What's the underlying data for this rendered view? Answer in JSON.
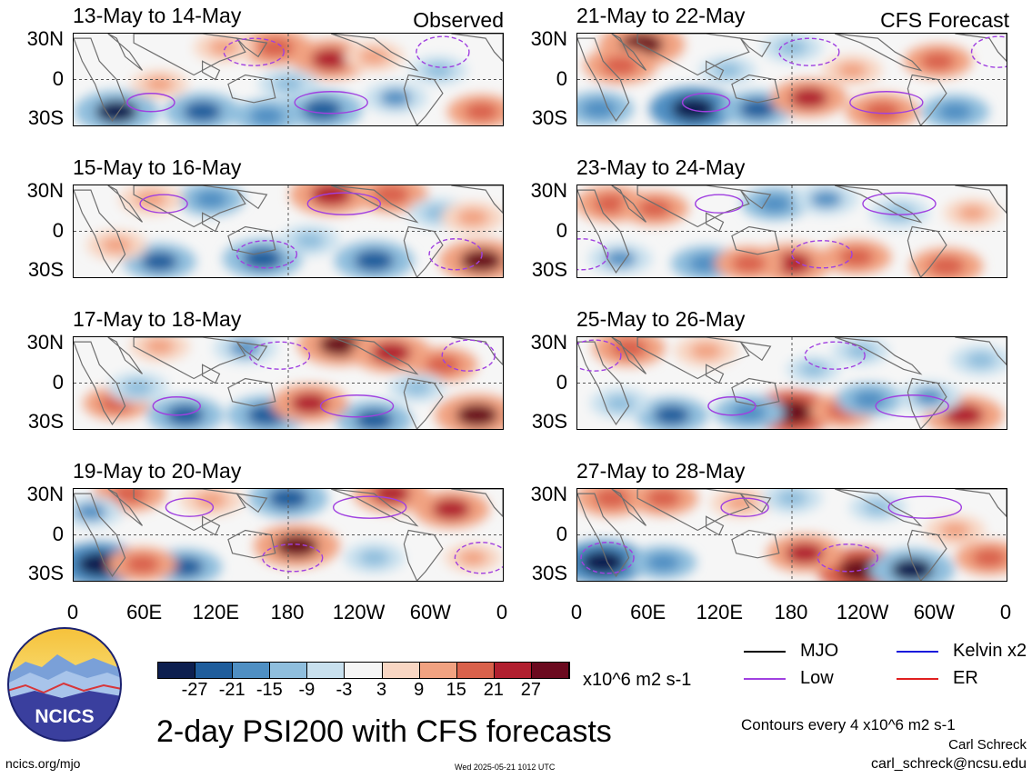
{
  "left_column_title": "Observed",
  "right_column_title": "CFS Forecast",
  "chart_data": [
    {
      "type": "heatmap",
      "title": "13-May to 14-May",
      "group": "Observed",
      "x": [
        "0",
        "60E",
        "120E",
        "180",
        "120W",
        "60W",
        "0"
      ],
      "y": [
        "30N",
        "0",
        "30S"
      ],
      "blobs": [
        [
          0.1,
          0.85,
          -25
        ],
        [
          0.3,
          0.85,
          -20
        ],
        [
          0.45,
          0.9,
          -15
        ],
        [
          0.58,
          0.83,
          -22
        ],
        [
          0.6,
          0.28,
          22
        ],
        [
          0.47,
          0.15,
          18
        ],
        [
          0.5,
          0.55,
          -10
        ],
        [
          0.95,
          0.85,
          15
        ],
        [
          0.2,
          0.55,
          8
        ],
        [
          0.75,
          0.7,
          -12
        ],
        [
          0.35,
          0.15,
          10
        ],
        [
          0.85,
          0.4,
          -8
        ],
        [
          0.7,
          0.25,
          10
        ]
      ]
    },
    {
      "type": "heatmap",
      "title": "15-May to 16-May",
      "group": "Observed",
      "x": [
        "0",
        "60E",
        "120E",
        "180",
        "120W",
        "60W",
        "0"
      ],
      "y": [
        "30N",
        "0",
        "30S"
      ],
      "blobs": [
        [
          0.2,
          0.83,
          -18
        ],
        [
          0.44,
          0.8,
          -22
        ],
        [
          0.7,
          0.82,
          -22
        ],
        [
          0.95,
          0.82,
          25
        ],
        [
          0.6,
          0.1,
          24
        ],
        [
          0.74,
          0.1,
          18
        ],
        [
          0.32,
          0.15,
          -14
        ],
        [
          0.18,
          0.15,
          12
        ],
        [
          0.1,
          0.65,
          10
        ],
        [
          0.55,
          0.6,
          -10
        ],
        [
          0.85,
          0.3,
          -10
        ],
        [
          0.93,
          0.35,
          12
        ]
      ]
    },
    {
      "type": "heatmap",
      "title": "17-May to 18-May",
      "group": "Observed",
      "x": [
        "0",
        "60E",
        "120E",
        "180",
        "120W",
        "60W",
        "0"
      ],
      "y": [
        "30N",
        "0",
        "30S"
      ],
      "blobs": [
        [
          0.26,
          0.85,
          -20
        ],
        [
          0.45,
          0.85,
          -22
        ],
        [
          0.7,
          0.9,
          -20
        ],
        [
          0.55,
          0.72,
          20
        ],
        [
          0.94,
          0.85,
          25
        ],
        [
          0.62,
          0.08,
          25
        ],
        [
          0.74,
          0.17,
          22
        ],
        [
          0.86,
          0.3,
          16
        ],
        [
          0.1,
          0.72,
          14
        ],
        [
          0.4,
          0.12,
          -12
        ],
        [
          0.2,
          0.1,
          10
        ],
        [
          0.15,
          0.55,
          -10
        ],
        [
          0.8,
          0.55,
          -8
        ]
      ]
    },
    {
      "type": "heatmap",
      "title": "19-May to 20-May",
      "group": "Observed",
      "x": [
        "0",
        "60E",
        "120E",
        "180",
        "120W",
        "60W",
        "0"
      ],
      "y": [
        "30N",
        "0",
        "30S"
      ],
      "blobs": [
        [
          0.06,
          0.82,
          -27
        ],
        [
          0.26,
          0.85,
          -18
        ],
        [
          0.16,
          0.82,
          15
        ],
        [
          0.52,
          0.62,
          26
        ],
        [
          0.5,
          0.1,
          -22
        ],
        [
          0.74,
          0.05,
          20
        ],
        [
          0.88,
          0.22,
          20
        ],
        [
          0.13,
          0.05,
          18
        ],
        [
          0.32,
          0.12,
          12
        ],
        [
          0.04,
          0.25,
          -12
        ],
        [
          0.7,
          0.75,
          -10
        ],
        [
          0.93,
          0.75,
          8
        ]
      ]
    },
    {
      "type": "heatmap",
      "title": "21-May to 22-May",
      "group": "CFS Forecast",
      "x": [
        "0",
        "60E",
        "120E",
        "180",
        "120W",
        "60W",
        "0"
      ],
      "y": [
        "30N",
        "0",
        "30S"
      ],
      "blobs": [
        [
          0.15,
          0.12,
          26
        ],
        [
          0.1,
          0.35,
          18
        ],
        [
          0.05,
          0.82,
          -16
        ],
        [
          0.27,
          0.82,
          -27
        ],
        [
          0.42,
          0.82,
          -18
        ],
        [
          0.54,
          0.7,
          20
        ],
        [
          0.71,
          0.85,
          18
        ],
        [
          0.88,
          0.85,
          -15
        ],
        [
          0.84,
          0.3,
          15
        ],
        [
          0.5,
          0.15,
          -10
        ],
        [
          0.35,
          0.4,
          -8
        ],
        [
          0.64,
          0.4,
          10
        ]
      ]
    },
    {
      "type": "heatmap",
      "title": "23-May to 24-May",
      "group": "CFS Forecast",
      "x": [
        "0",
        "60E",
        "120E",
        "180",
        "120W",
        "60W",
        "0"
      ],
      "y": [
        "30N",
        "0",
        "30S"
      ],
      "blobs": [
        [
          0.08,
          0.2,
          18
        ],
        [
          0.18,
          0.25,
          15
        ],
        [
          0.5,
          0.85,
          22
        ],
        [
          0.65,
          0.78,
          16
        ],
        [
          0.86,
          0.88,
          18
        ],
        [
          0.3,
          0.85,
          -16
        ],
        [
          0.4,
          0.85,
          15
        ],
        [
          0.1,
          0.8,
          -12
        ],
        [
          0.46,
          0.2,
          -14
        ],
        [
          0.58,
          0.15,
          -12
        ],
        [
          0.75,
          0.3,
          -10
        ],
        [
          0.92,
          0.3,
          8
        ]
      ]
    },
    {
      "type": "heatmap",
      "title": "25-May to 26-May",
      "group": "CFS Forecast",
      "x": [
        "0",
        "60E",
        "120E",
        "180",
        "120W",
        "60W",
        "0"
      ],
      "y": [
        "30N",
        "0",
        "30S"
      ],
      "blobs": [
        [
          0.5,
          0.82,
          27
        ],
        [
          0.62,
          0.8,
          14
        ],
        [
          0.9,
          0.85,
          22
        ],
        [
          0.22,
          0.85,
          -18
        ],
        [
          0.4,
          0.82,
          -16
        ],
        [
          0.68,
          0.68,
          -14
        ],
        [
          0.82,
          0.65,
          -12
        ],
        [
          0.1,
          0.72,
          -10
        ],
        [
          0.12,
          0.12,
          18
        ],
        [
          0.3,
          0.15,
          12
        ],
        [
          0.66,
          0.15,
          -8
        ],
        [
          0.94,
          0.25,
          -10
        ],
        [
          0.55,
          0.35,
          -6
        ]
      ]
    },
    {
      "type": "heatmap",
      "title": "27-May to 28-May",
      "group": "CFS Forecast",
      "x": [
        "0",
        "60E",
        "120E",
        "180",
        "120W",
        "60W",
        "0"
      ],
      "y": [
        "30N",
        "0",
        "30S"
      ],
      "blobs": [
        [
          0.06,
          0.8,
          -27
        ],
        [
          0.2,
          0.8,
          -14
        ],
        [
          0.66,
          0.88,
          27
        ],
        [
          0.78,
          0.88,
          -25
        ],
        [
          0.53,
          0.7,
          20
        ],
        [
          0.96,
          0.75,
          15
        ],
        [
          0.08,
          0.1,
          18
        ],
        [
          0.2,
          0.1,
          16
        ],
        [
          0.38,
          0.15,
          10
        ],
        [
          0.5,
          0.1,
          -10
        ],
        [
          0.7,
          0.2,
          -8
        ],
        [
          0.88,
          0.45,
          10
        ]
      ]
    }
  ],
  "x_ticks": [
    "0",
    "60E",
    "120E",
    "180",
    "120W",
    "60W",
    "0"
  ],
  "y_ticks": [
    "30N",
    "0",
    "30S"
  ],
  "colorbar": {
    "colors": [
      "#0d1f4f",
      "#1f5d9c",
      "#4f8fc3",
      "#8fbedd",
      "#c8e0ee",
      "#f5f5f5",
      "#f8d6c3",
      "#f1a281",
      "#d9614b",
      "#b11f2f",
      "#6b0a1f"
    ],
    "ticks": [
      "-27",
      "-21",
      "-15",
      "-9",
      "-3",
      "3",
      "9",
      "15",
      "21",
      "27"
    ],
    "units": "x10^6 m2 s-1"
  },
  "main_title": "2-day PSI200 with CFS forecasts",
  "legend": [
    {
      "label": "MJO",
      "color": "#000000"
    },
    {
      "label": "Kelvin x2",
      "color": "#1a1adc"
    },
    {
      "label": "Low",
      "color": "#a040e0"
    },
    {
      "label": "ER",
      "color": "#e02020"
    }
  ],
  "contour_note": "Contours every 4 x10^6 m2 s-1",
  "author": "Carl Schreck",
  "email": "carl_schreck@ncsu.edu",
  "site": "ncics.org/mjo",
  "timestamp": "Wed 2025-05-21 1012 UTC",
  "logo_text": "NCICS"
}
